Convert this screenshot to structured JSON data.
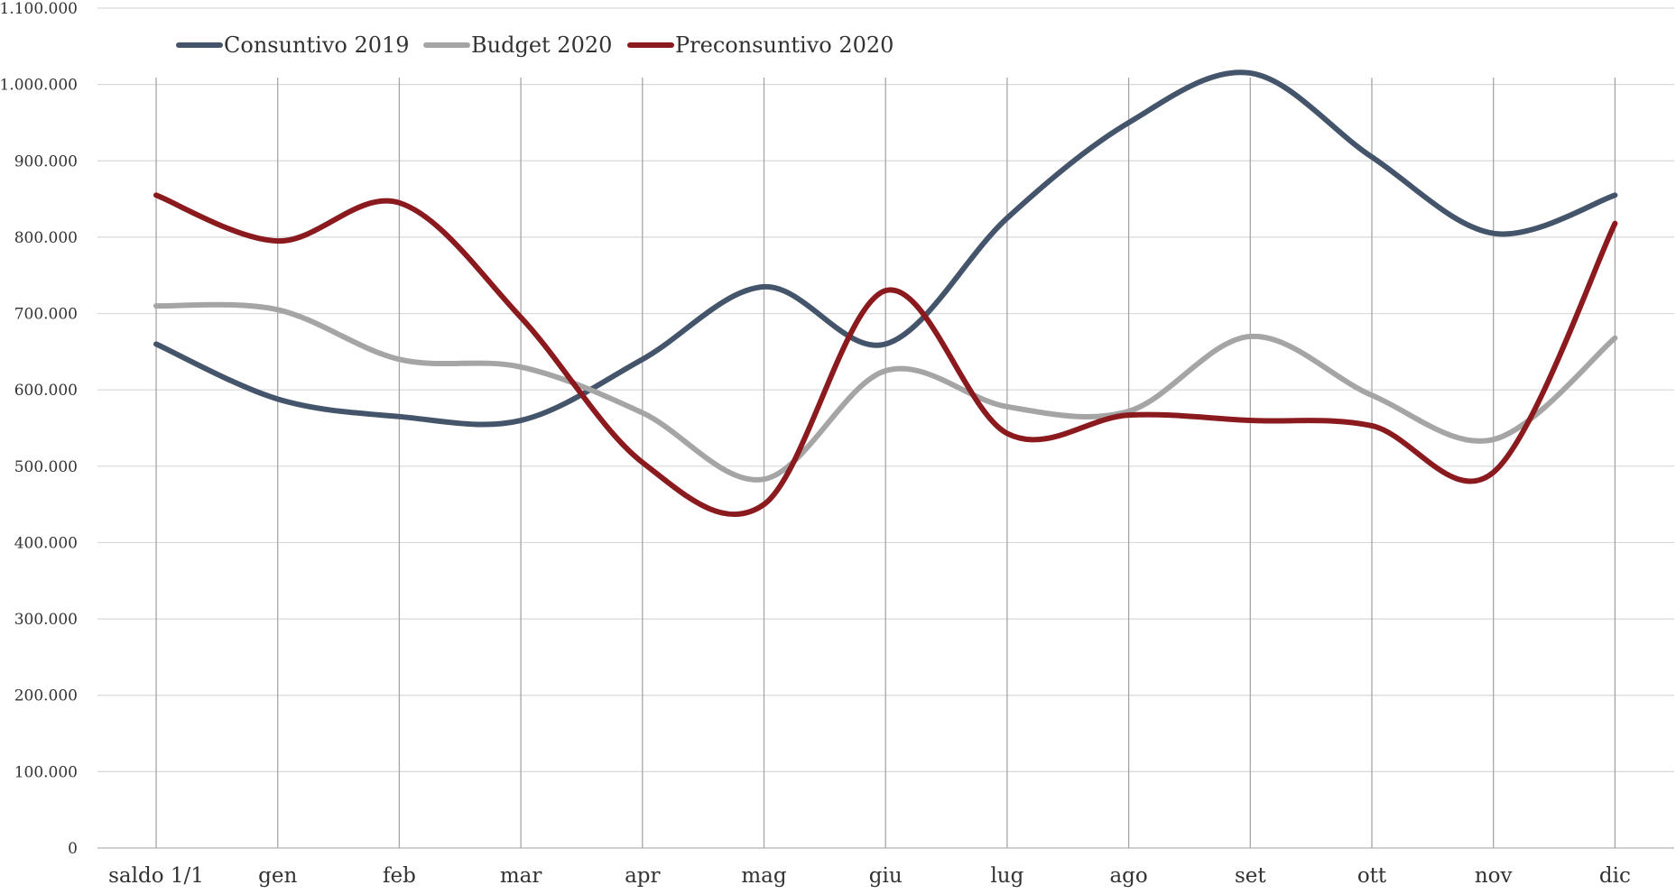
{
  "chart_data": {
    "type": "line",
    "title": "",
    "xlabel": "",
    "ylabel": "",
    "categories": [
      "saldo 1/1",
      "gen",
      "feb",
      "mar",
      "apr",
      "mag",
      "giu",
      "lug",
      "ago",
      "set",
      "ott",
      "nov",
      "dic"
    ],
    "ylim": [
      0,
      1100000
    ],
    "y_ticks": [
      0,
      100000,
      200000,
      300000,
      400000,
      500000,
      600000,
      700000,
      800000,
      900000,
      1000000,
      1100000
    ],
    "y_tick_labels": [
      "0",
      "100.000",
      "200.000",
      "300.000",
      "400.000",
      "500.000",
      "600.000",
      "700.000",
      "800.000",
      "900.000",
      "1.000.000",
      "1.100.000"
    ],
    "grid": true,
    "smooth": true,
    "legend_position": "top-left",
    "series": [
      {
        "name": "Consuntivo 2019",
        "color": "#44546a",
        "values": [
          660000,
          588000,
          565000,
          560000,
          640000,
          735000,
          660000,
          825000,
          950000,
          1015000,
          905000,
          805000,
          855000
        ]
      },
      {
        "name": "Budget 2020",
        "color": "#a5a5a5",
        "values": [
          710000,
          705000,
          640000,
          630000,
          570000,
          483000,
          625000,
          578000,
          572000,
          670000,
          593000,
          535000,
          668000
        ]
      },
      {
        "name": "Preconsuntivo 2020",
        "color": "#8b1a1f",
        "values": [
          855000,
          795000,
          845000,
          695000,
          505000,
          450000,
          730000,
          543000,
          567000,
          560000,
          553000,
          492000,
          818000
        ]
      }
    ]
  }
}
